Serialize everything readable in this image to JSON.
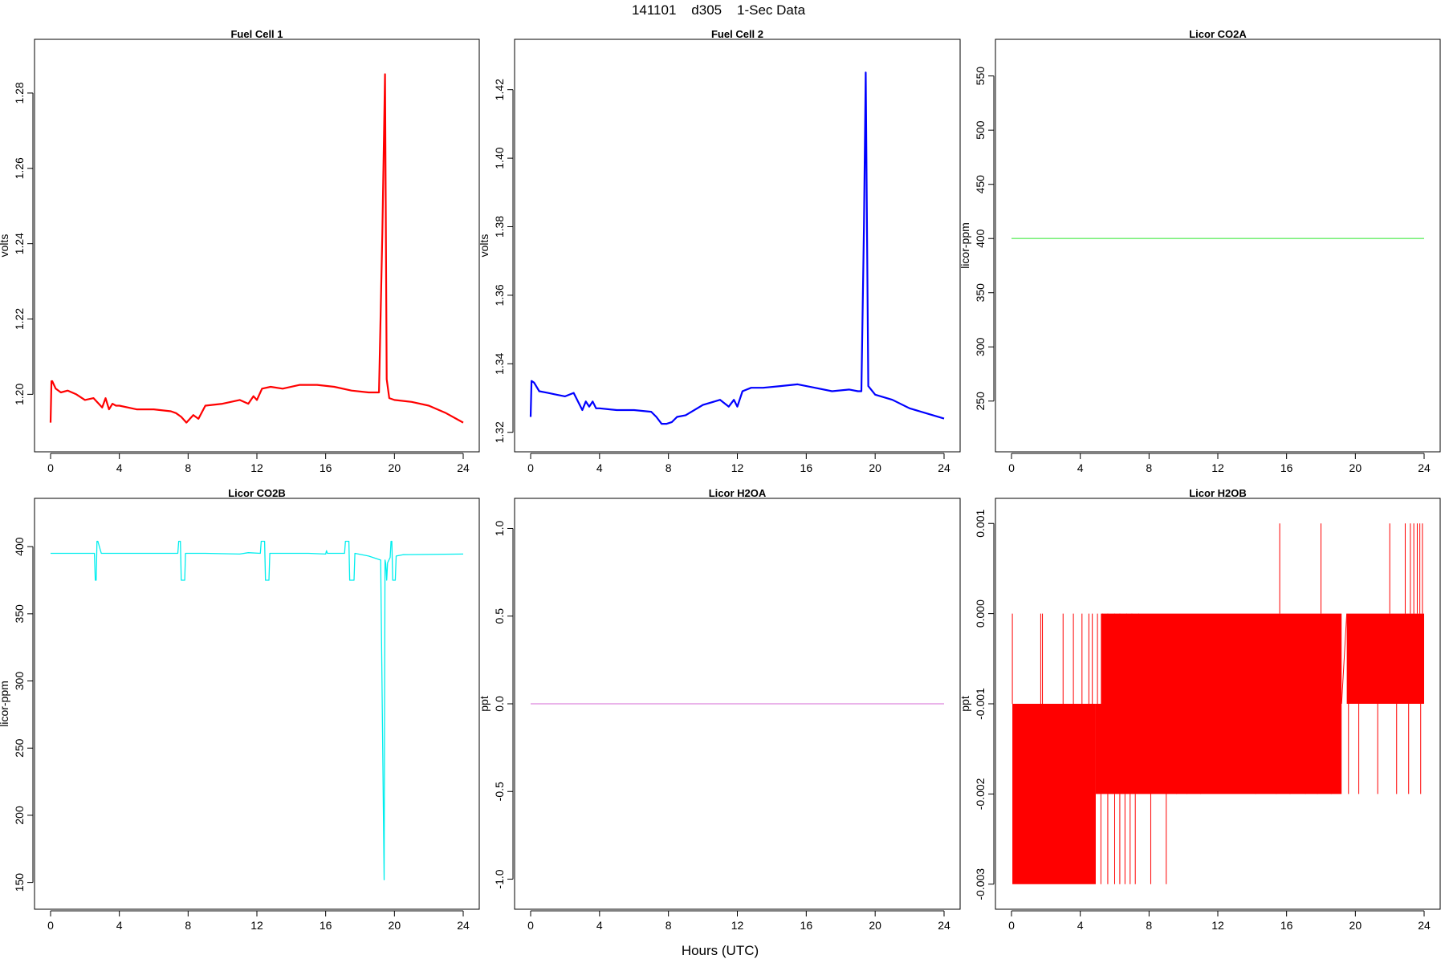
{
  "figure": {
    "title": "141101    d305    1-Sec Data",
    "xlabel": "Hours (UTC)"
  },
  "chart_data": [
    {
      "type": "line",
      "title": "Fuel Cell 1",
      "ylabel": "volts",
      "color": "#ff0000",
      "xlim": [
        0,
        24
      ],
      "xticks": [
        0,
        4,
        8,
        12,
        16,
        20,
        24
      ],
      "ylim": [
        1.189,
        1.29
      ],
      "yticks": [
        1.2,
        1.22,
        1.24,
        1.26,
        1.28
      ],
      "ytick_labels": [
        "1.20",
        "1.22",
        "1.24",
        "1.26",
        "1.28"
      ],
      "x": [
        0,
        0.05,
        0.1,
        0.3,
        0.6,
        1,
        1.5,
        2,
        2.5,
        3,
        3.2,
        3.4,
        3.6,
        3.8,
        4,
        5,
        6,
        7,
        7.3,
        7.6,
        7.9,
        8.3,
        8.6,
        9,
        10,
        11,
        11.5,
        11.8,
        12,
        12.3,
        12.8,
        13.5,
        14.5,
        15.5,
        16.5,
        17.5,
        18.5,
        19.1,
        19.3,
        19.45,
        19.55,
        19.7,
        20,
        21,
        22,
        23,
        24
      ],
      "y": [
        1.1925,
        1.2035,
        1.2035,
        1.2015,
        1.2005,
        1.201,
        1.2,
        1.1985,
        1.199,
        1.1965,
        1.199,
        1.196,
        1.1975,
        1.197,
        1.197,
        1.196,
        1.196,
        1.1955,
        1.195,
        1.194,
        1.1925,
        1.1945,
        1.1935,
        1.197,
        1.1975,
        1.1985,
        1.1975,
        1.1995,
        1.1985,
        1.2015,
        1.202,
        1.2015,
        1.2025,
        1.2025,
        1.202,
        1.201,
        1.2005,
        1.2005,
        1.243,
        1.285,
        1.204,
        1.199,
        1.1985,
        1.198,
        1.197,
        1.195,
        1.1925
      ]
    },
    {
      "type": "line",
      "title": "Fuel Cell 2",
      "ylabel": "volts",
      "color": "#0000ff",
      "xlim": [
        0,
        24
      ],
      "xticks": [
        0,
        4,
        8,
        12,
        16,
        20,
        24
      ],
      "ylim": [
        1.319,
        1.43
      ],
      "yticks": [
        1.32,
        1.34,
        1.36,
        1.38,
        1.4,
        1.42
      ],
      "ytick_labels": [
        "1.32",
        "1.34",
        "1.36",
        "1.38",
        "1.40",
        "1.42"
      ],
      "x": [
        0,
        0.05,
        0.2,
        0.5,
        1,
        1.5,
        2,
        2.5,
        3,
        3.2,
        3.4,
        3.6,
        3.8,
        4,
        5,
        6,
        7,
        7.3,
        7.6,
        7.9,
        8.2,
        8.5,
        9,
        10,
        11,
        11.5,
        11.8,
        12,
        12.3,
        12.8,
        13.5,
        14.5,
        15.5,
        16.5,
        17.5,
        18.5,
        19,
        19.2,
        19.35,
        19.45,
        19.6,
        20,
        21,
        22,
        23,
        24
      ],
      "y": [
        1.3245,
        1.335,
        1.3345,
        1.332,
        1.3315,
        1.331,
        1.3305,
        1.3315,
        1.3265,
        1.329,
        1.3275,
        1.329,
        1.327,
        1.327,
        1.3265,
        1.3265,
        1.326,
        1.3245,
        1.3225,
        1.3225,
        1.323,
        1.3245,
        1.325,
        1.328,
        1.3295,
        1.3275,
        1.3295,
        1.3275,
        1.332,
        1.333,
        1.333,
        1.3335,
        1.334,
        1.333,
        1.332,
        1.3325,
        1.332,
        1.332,
        1.38,
        1.425,
        1.3335,
        1.331,
        1.3295,
        1.327,
        1.3255,
        1.324
      ]
    },
    {
      "type": "line",
      "title": "Licor CO2A",
      "ylabel": "licor-ppm",
      "color": "#66ee66",
      "xlim": [
        0,
        24
      ],
      "xticks": [
        0,
        4,
        8,
        12,
        16,
        20,
        24
      ],
      "ylim": [
        218,
        569
      ],
      "yticks": [
        250,
        300,
        350,
        400,
        450,
        500,
        550
      ],
      "ytick_labels": [
        "250",
        "300",
        "350",
        "400",
        "450",
        "500",
        "550"
      ],
      "x": [
        0,
        24
      ],
      "y": [
        400,
        400
      ]
    },
    {
      "type": "line",
      "title": "Licor CO2B",
      "ylabel": "licor-ppm",
      "color": "#00eeee",
      "xlim": [
        0,
        24
      ],
      "xticks": [
        0,
        4,
        8,
        12,
        16,
        20,
        24
      ],
      "ylim": [
        142,
        424
      ],
      "yticks": [
        150,
        200,
        250,
        300,
        350,
        400
      ],
      "ytick_labels": [
        "150",
        "200",
        "250",
        "300",
        "350",
        "400"
      ],
      "x": [
        0,
        2.5,
        2.55,
        2.6,
        2.65,
        2.7,
        2.75,
        2.95,
        3.0,
        3.4,
        7.4,
        7.45,
        7.55,
        7.6,
        7.8,
        7.85,
        9,
        11,
        11.5,
        12.2,
        12.25,
        12.45,
        12.5,
        12.7,
        12.75,
        15,
        16,
        16.05,
        16.1,
        17.1,
        17.15,
        17.35,
        17.4,
        17.65,
        17.7,
        18.5,
        19.2,
        19.4,
        19.45,
        19.5,
        19.55,
        19.6,
        19.75,
        19.8,
        19.85,
        19.9,
        20.05,
        20.1,
        20.5,
        24
      ],
      "y": [
        395,
        395,
        395,
        375,
        375,
        404,
        404,
        395,
        395,
        395,
        395,
        404,
        404,
        375,
        375,
        395,
        395,
        394.5,
        395.5,
        395,
        404,
        404,
        375,
        375,
        395,
        395,
        394.5,
        397,
        395,
        395,
        404,
        404,
        375,
        375,
        395,
        393,
        390,
        152,
        390,
        387,
        375,
        388,
        392,
        404,
        404,
        375,
        375,
        393,
        394,
        394.5
      ]
    },
    {
      "type": "line",
      "title": "Licor H2OA",
      "ylabel": "ppt",
      "color": "#dd88dd",
      "xlim": [
        0,
        24
      ],
      "xticks": [
        0,
        4,
        8,
        12,
        16,
        20,
        24
      ],
      "ylim": [
        -1.08,
        1.08
      ],
      "yticks": [
        -1.0,
        -0.5,
        0.0,
        0.5,
        1.0
      ],
      "ytick_labels": [
        "-1.0",
        "-0.5",
        "0.0",
        "0.5",
        "1.0"
      ],
      "x": [
        0,
        24
      ],
      "y": [
        0,
        0
      ]
    },
    {
      "type": "line",
      "title": "Licor H2OB",
      "ylabel": "ppt",
      "color": "#ff0000",
      "xlim": [
        0,
        24
      ],
      "xticks": [
        0,
        4,
        8,
        12,
        16,
        20,
        24
      ],
      "ylim": [
        -0.0031,
        0.0011
      ],
      "yticks": [
        -0.003,
        -0.002,
        -0.001,
        0.0,
        0.001
      ],
      "ytick_labels": [
        "-0.003",
        "-0.002",
        "-0.001",
        "0.000",
        "0.001"
      ],
      "bands": [
        {
          "x0": 0.05,
          "x1": 4.9,
          "y0": -0.003,
          "y1": -0.001
        },
        {
          "x0": 4.9,
          "x1": 19.2,
          "y0": -0.002,
          "y1": -0.001
        },
        {
          "x0": 5.2,
          "x1": 19.2,
          "y0": -0.001,
          "y1": 0.0
        },
        {
          "x0": 19.5,
          "x1": 24,
          "y0": -0.001,
          "y1": 0.0
        }
      ],
      "spikes_up": [
        0.05,
        1.7,
        1.8,
        3.0,
        3.6,
        4.1,
        4.5,
        4.7,
        5.0,
        5.3,
        5.6,
        6.0,
        6.3,
        6.7,
        7.0,
        7.4,
        15.6,
        18.0,
        22.0,
        22.9,
        23.2,
        23.4,
        23.6,
        23.75,
        23.9
      ],
      "spikes_down": [
        5.2,
        5.6,
        6.0,
        6.3,
        6.6,
        6.9,
        7.2,
        8.1,
        9.0,
        9.6,
        10.2,
        11.0,
        14.2,
        15.4,
        16.2,
        17.1,
        17.8,
        18.6,
        19.6,
        20.2,
        21.3,
        22.4,
        23.1,
        23.8
      ],
      "connector": {
        "x": [
          19.2,
          19.5
        ],
        "y": [
          -0.001,
          0.0
        ]
      }
    }
  ]
}
